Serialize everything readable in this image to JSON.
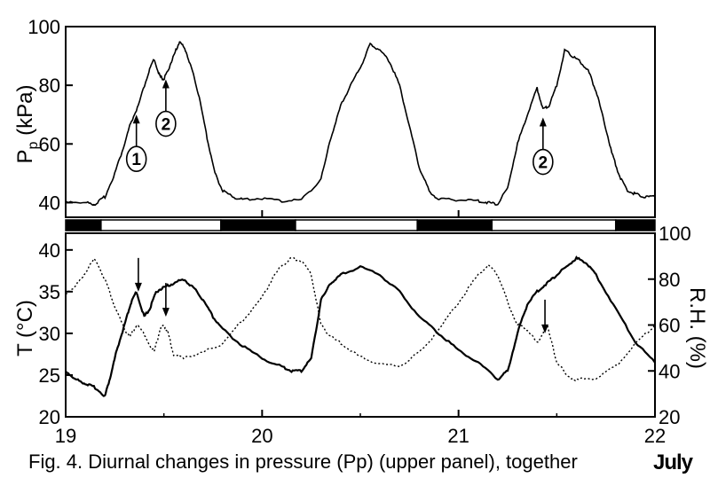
{
  "chart_data": [
    {
      "type": "line",
      "panel": "upper",
      "ylabel_main": "P",
      "ylabel_sub": "p",
      "ylabel_unit": " (kPa)",
      "xlim": [
        19,
        22
      ],
      "ylim": [
        35,
        100
      ],
      "yticks": [
        "40",
        "60",
        "80",
        "100"
      ],
      "series": [
        {
          "x": [
            19.0,
            19.1,
            19.15,
            19.2,
            19.25,
            19.3,
            19.33,
            19.37,
            19.42,
            19.45,
            19.48,
            19.5,
            19.52,
            19.55,
            19.58,
            19.61,
            19.64,
            19.68,
            19.72,
            19.76,
            19.8,
            19.85,
            19.9,
            20.0,
            20.1,
            20.2,
            20.3,
            20.35,
            20.4,
            20.45,
            20.5,
            20.55,
            20.6,
            20.65,
            20.7,
            20.75,
            20.8,
            20.85,
            20.9,
            21.0,
            21.1,
            21.15,
            21.2,
            21.25,
            21.3,
            21.35,
            21.4,
            21.43,
            21.46,
            21.5,
            21.54,
            21.58,
            21.62,
            21.66,
            21.7,
            21.74,
            21.78,
            21.82,
            21.86,
            21.9,
            21.95,
            22.0
          ],
          "values": [
            40.5,
            40,
            39.5,
            42,
            50,
            60,
            67,
            73,
            84,
            89,
            83,
            82,
            85,
            90,
            95,
            92,
            86,
            76,
            62,
            50,
            44,
            42,
            41,
            41.5,
            40.5,
            41,
            48,
            62,
            73,
            80,
            86,
            94,
            92,
            88,
            80,
            66,
            52,
            44,
            41,
            41,
            40.5,
            40,
            39.5,
            45,
            60,
            70,
            79,
            72,
            73,
            80,
            92,
            90,
            88,
            85,
            78,
            68,
            57,
            49,
            44,
            43,
            42,
            42
          ]
        }
      ],
      "annotations": [
        {
          "label": "1",
          "x": 19.36,
          "y": 70
        },
        {
          "label": "2",
          "x": 19.51,
          "y": 82
        },
        {
          "label": "2",
          "x": 21.43,
          "y": 69
        }
      ]
    },
    {
      "type": "line",
      "panel": "lower",
      "ylabel": "T (°C)",
      "ylabel_right": "R.H. (%)",
      "xlabel_unit": "July",
      "xlim": [
        19,
        22
      ],
      "xticks": [
        "19",
        "20",
        "21",
        "22"
      ],
      "ylim": [
        20,
        42
      ],
      "yticks": [
        "20",
        "25",
        "30",
        "35",
        "40"
      ],
      "ylim_right": [
        20,
        100
      ],
      "yticks_right": [
        "20",
        "40",
        "60",
        "80",
        "100"
      ],
      "series": [
        {
          "axis": "left",
          "style": "solid",
          "x": [
            19.0,
            19.05,
            19.1,
            19.15,
            19.2,
            19.23,
            19.26,
            19.3,
            19.33,
            19.36,
            19.4,
            19.43,
            19.46,
            19.5,
            19.55,
            19.6,
            19.65,
            19.7,
            19.75,
            19.8,
            19.9,
            20.0,
            20.1,
            20.15,
            20.2,
            20.25,
            20.3,
            20.35,
            20.4,
            20.5,
            20.6,
            20.7,
            20.8,
            20.9,
            21.0,
            21.1,
            21.2,
            21.25,
            21.3,
            21.35,
            21.4,
            21.45,
            21.5,
            21.55,
            21.6,
            21.65,
            21.7,
            21.8,
            21.9,
            22.0
          ],
          "values": [
            25.5,
            24.5,
            24,
            23.5,
            22.5,
            25,
            28,
            31,
            33.5,
            35,
            32,
            33,
            35,
            35.5,
            36,
            36.5,
            35.5,
            34,
            32,
            30.5,
            28.5,
            27,
            26,
            25.5,
            25.5,
            27,
            34,
            36,
            37,
            38,
            37,
            35,
            32,
            30,
            28,
            26.5,
            24.5,
            25.5,
            30,
            33.5,
            35,
            36,
            37,
            38,
            39,
            38.5,
            37,
            33,
            29,
            26.5
          ]
        },
        {
          "axis": "right",
          "style": "dotted",
          "x": [
            19.0,
            19.05,
            19.1,
            19.15,
            19.2,
            19.25,
            19.3,
            19.33,
            19.36,
            19.4,
            19.45,
            19.48,
            19.5,
            19.52,
            19.55,
            19.6,
            19.7,
            19.8,
            19.9,
            20.0,
            20.05,
            20.1,
            20.15,
            20.2,
            20.25,
            20.3,
            20.35,
            20.4,
            20.5,
            20.6,
            20.7,
            20.8,
            20.9,
            21.0,
            21.1,
            21.15,
            21.2,
            21.25,
            21.3,
            21.35,
            21.4,
            21.45,
            21.5,
            21.55,
            21.6,
            21.7,
            21.8,
            21.9,
            22.0
          ],
          "values": [
            74,
            77,
            83,
            89,
            80,
            68,
            58,
            55,
            60,
            56,
            48,
            58,
            60,
            57,
            47,
            46,
            48,
            52,
            62,
            72,
            80,
            86,
            89,
            88,
            82,
            60,
            55,
            52,
            46,
            43,
            42,
            48,
            58,
            70,
            82,
            86,
            82,
            70,
            60,
            58,
            52,
            60,
            44,
            38,
            36,
            37,
            42,
            52,
            60
          ]
        }
      ],
      "annotations": [
        {
          "x": 19.37,
          "y": 35
        },
        {
          "x": 19.51,
          "y": 32
        },
        {
          "x": 21.44,
          "y": 30
        }
      ]
    }
  ],
  "light_dark_bar": [
    {
      "from": 19.0,
      "to": 19.18,
      "state": "dark"
    },
    {
      "from": 19.18,
      "to": 19.79,
      "state": "light"
    },
    {
      "from": 19.79,
      "to": 20.17,
      "state": "dark"
    },
    {
      "from": 20.17,
      "to": 20.79,
      "state": "light"
    },
    {
      "from": 20.79,
      "to": 21.17,
      "state": "dark"
    },
    {
      "from": 21.17,
      "to": 21.8,
      "state": "light"
    },
    {
      "from": 21.8,
      "to": 22.0,
      "state": "dark"
    }
  ],
  "caption": "Fig. 4. Diurnal changes in pressure (Pp) (upper panel), together"
}
